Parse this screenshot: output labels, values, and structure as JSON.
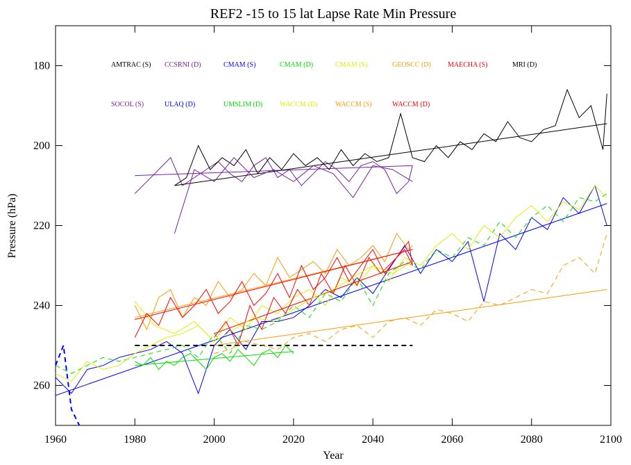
{
  "chart_data": {
    "type": "line",
    "title": "REF2 -15 to 15 lat Lapse Rate Min Pressure",
    "x_label": "Year",
    "y_label": "Pressure (hPa)",
    "xlim": [
      1960,
      2100
    ],
    "xticks": [
      1960,
      1980,
      2000,
      2020,
      2040,
      2060,
      2080,
      2100
    ],
    "ylim": [
      270,
      170
    ],
    "yticks": [
      180,
      200,
      220,
      240,
      260
    ],
    "series": [
      {
        "name": "AMTRAC (S)",
        "color": "#000000",
        "dash": true,
        "x": [
          1980,
          1990,
          2000,
          2010,
          2020,
          2030,
          2040,
          2050
        ],
        "values": [
          250,
          250,
          250,
          250,
          250,
          250,
          250,
          250
        ]
      },
      {
        "name": "CCSRNI (D)",
        "color": "#7a1fa2",
        "dash": false,
        "x": [
          1980,
          1983,
          1986,
          1989,
          1992,
          1995,
          1998,
          2001,
          2004,
          2007,
          2010,
          2013,
          2016,
          2019,
          2022,
          2025,
          2028,
          2031,
          2034,
          2037,
          2040,
          2043,
          2046,
          2049,
          2050
        ],
        "values": [
          212,
          209,
          206,
          203,
          210,
          208,
          206,
          204,
          207,
          209,
          205,
          203,
          208,
          206,
          210,
          207,
          204,
          206,
          209,
          205,
          204,
          206,
          212,
          209,
          205
        ],
        "trend": {
          "x": [
            1980,
            2050
          ],
          "values": [
            207.5,
            205
          ]
        }
      },
      {
        "name": "CMAM (S)",
        "color": "#0000ff",
        "dash": false,
        "x": [
          1960,
          1964,
          1968,
          1972,
          1976,
          1980,
          1984,
          1988,
          1992,
          1996,
          2000,
          2004,
          2008,
          2012,
          2016,
          2020,
          2024,
          2028,
          2032,
          2036,
          2040,
          2044,
          2048,
          2052,
          2056,
          2060,
          2064,
          2068,
          2072,
          2076,
          2080,
          2084,
          2088,
          2092,
          2096,
          2099
        ],
        "values": [
          258,
          262,
          256,
          255,
          253,
          252,
          251,
          249,
          252,
          262,
          250,
          246,
          251,
          244,
          244,
          243,
          240,
          236,
          238,
          233,
          237,
          231,
          225,
          232,
          226,
          229,
          224,
          239,
          222,
          226,
          218,
          221,
          213,
          217,
          210,
          220
        ],
        "trend": {
          "x": [
            1960,
            2099
          ],
          "values": [
            262.5,
            214.5
          ]
        }
      },
      {
        "name": "CMAM (D)",
        "color": "#00e000",
        "dash": true,
        "x": [
          1960,
          1964,
          1968,
          1972,
          1976,
          1980,
          1984,
          1988,
          1992,
          1996,
          2000,
          2004,
          2008,
          2012,
          2016,
          2020,
          2024,
          2028,
          2032,
          2036,
          2040,
          2044,
          2048,
          2052,
          2056,
          2060,
          2064,
          2068,
          2072,
          2076,
          2080,
          2084,
          2088,
          2092,
          2096,
          2099
        ],
        "values": [
          255,
          257,
          255,
          253,
          254,
          253,
          252,
          251,
          250,
          253,
          247,
          252,
          245,
          246,
          244,
          240,
          243,
          237,
          239,
          233,
          240,
          232,
          229,
          231,
          226,
          228,
          223,
          225,
          219,
          223,
          218,
          215,
          219,
          213,
          214,
          212
        ]
      },
      {
        "name": "CMAM (S)",
        "color": "#dcf000",
        "dash": false,
        "x": [
          1960,
          1964,
          1968,
          1972,
          1976,
          1980,
          1984,
          1988,
          1992,
          1996,
          2000,
          2004,
          2008,
          2012,
          2016,
          2020,
          2024,
          2028,
          2032,
          2036,
          2040,
          2044,
          2048,
          2052,
          2056,
          2060,
          2064,
          2068,
          2072,
          2076,
          2080,
          2084,
          2088,
          2092,
          2096,
          2099
        ],
        "values": [
          257,
          259,
          254,
          256,
          255,
          252,
          250,
          248,
          247,
          245,
          249,
          243,
          246,
          240,
          242,
          238,
          236,
          240,
          233,
          235,
          230,
          234,
          228,
          230,
          225,
          222,
          226,
          220,
          223,
          218,
          215,
          219,
          214,
          216,
          210,
          213
        ]
      },
      {
        "name": "GEOSCC (D)",
        "color": "#ff9900",
        "dash": false,
        "x": [
          1980,
          1983,
          1986,
          1989,
          1992,
          1995,
          1998,
          2001,
          2004,
          2007,
          2010,
          2013,
          2016,
          2019,
          2022,
          2025,
          2028,
          2031,
          2034,
          2037,
          2040,
          2043,
          2046,
          2049,
          2050
        ],
        "values": [
          240,
          246,
          238,
          236,
          243,
          238,
          240,
          234,
          238,
          236,
          232,
          235,
          228,
          233,
          231,
          229,
          232,
          226,
          230,
          228,
          225,
          229,
          222,
          226,
          225
        ],
        "trend": {
          "x": [
            1980,
            2050
          ],
          "values": [
            243,
            226
          ]
        }
      },
      {
        "name": "MAECHA (S)",
        "color": "#ff0000",
        "dash": false,
        "x": [
          2000,
          2003,
          2006,
          2009,
          2012,
          2015,
          2018,
          2021,
          2024,
          2027,
          2030,
          2033,
          2036,
          2039,
          2042,
          2045,
          2048,
          2050
        ],
        "values": [
          248,
          244,
          250,
          240,
          246,
          238,
          242,
          236,
          240,
          232,
          237,
          230,
          235,
          228,
          232,
          229,
          226,
          230
        ],
        "trend": {
          "x": [
            2000,
            2050
          ],
          "values": [
            247,
            229
          ]
        }
      },
      {
        "name": "MRI (D)",
        "color": "#000000",
        "dash": false,
        "x": [
          1990,
          1993,
          1996,
          1999,
          2002,
          2005,
          2008,
          2011,
          2014,
          2017,
          2020,
          2023,
          2026,
          2029,
          2032,
          2035,
          2038,
          2041,
          2044,
          2047,
          2050,
          2053,
          2056,
          2059,
          2062,
          2065,
          2068,
          2071,
          2074,
          2077,
          2080,
          2083,
          2086,
          2089,
          2092,
          2095,
          2098,
          2099
        ],
        "values": [
          210,
          208,
          200,
          206,
          203,
          205,
          201,
          207,
          203,
          206,
          202,
          205,
          203,
          206,
          201,
          205,
          202,
          204,
          203,
          192,
          203,
          204,
          200,
          203,
          199,
          201,
          197,
          199,
          194,
          198,
          199,
          196,
          195,
          186,
          193,
          190,
          201,
          187
        ],
        "trend": {
          "x": [
            1990,
            2099
          ],
          "values": [
            210,
            194.5
          ]
        }
      },
      {
        "name": "SOCOL (S)",
        "color": "#7a1fa2",
        "dash": false,
        "x": [
          1990,
          1995,
          2000,
          2005,
          2010,
          2015,
          2020,
          2025,
          2030,
          2035,
          2040,
          2045,
          2050
        ],
        "values": [
          222,
          206,
          209,
          203,
          208,
          206,
          209,
          205,
          207,
          213,
          205,
          206,
          209
        ]
      },
      {
        "name": "ULAQ (D)",
        "color": "#0000ff",
        "dash": true,
        "x": [
          1960,
          1962,
          1964,
          1966
        ],
        "values": [
          255,
          250,
          266,
          270
        ]
      },
      {
        "name": "UMSLIM (D)",
        "color": "#00e000",
        "dash": false,
        "x": [
          1980,
          1982,
          1984,
          1986,
          1988,
          1990,
          1992,
          1994,
          1996,
          1998,
          2000,
          2002,
          2004,
          2006,
          2008,
          2010,
          2012,
          2014,
          2016,
          2018,
          2020
        ],
        "values": [
          254,
          255,
          253,
          256,
          254,
          255,
          253,
          252,
          254,
          256,
          253,
          252,
          254,
          251,
          253,
          255,
          252,
          251,
          253,
          250,
          252
        ],
        "trend": {
          "x": [
            1980,
            2020
          ],
          "values": [
            255,
            251.5
          ]
        }
      },
      {
        "name": "WACCM (D)",
        "color": "#dcf000",
        "dash": false,
        "x": [
          1980,
          1985,
          1990,
          1995,
          2000,
          2005,
          2010,
          2015,
          2020,
          2025,
          2030,
          2035,
          2040,
          2045,
          2050
        ],
        "values": [
          239,
          245,
          247,
          244,
          249,
          246,
          243,
          244,
          241,
          238,
          236,
          233,
          230,
          232,
          229
        ]
      },
      {
        "name": "WACCM (S)",
        "color": "#ff9900",
        "dash": true,
        "x": [
          2000,
          2004,
          2008,
          2012,
          2016,
          2020,
          2024,
          2028,
          2032,
          2036,
          2040,
          2044,
          2048,
          2052,
          2056,
          2060,
          2064,
          2068,
          2072,
          2076,
          2080,
          2084,
          2088,
          2092,
          2096,
          2099
        ],
        "values": [
          252,
          251,
          249,
          250,
          251,
          248,
          247,
          249,
          246,
          245,
          248,
          244,
          243,
          245,
          241,
          242,
          244,
          239,
          240,
          238,
          236,
          237,
          230,
          228,
          232,
          222
        ],
        "trend": {
          "x": [
            2000,
            2099
          ],
          "values": [
            250,
            236
          ]
        }
      },
      {
        "name": "WACCM (D)",
        "color": "#ff0000",
        "dash": false,
        "x": [
          1980,
          1983,
          1986,
          1989,
          1992,
          1995,
          1998,
          2001,
          2004,
          2007,
          2010,
          2013,
          2016,
          2019,
          2022,
          2025,
          2028,
          2031,
          2034,
          2037,
          2040,
          2043,
          2046,
          2049,
          2050
        ],
        "values": [
          248,
          242,
          245,
          238,
          243,
          240,
          236,
          242,
          239,
          234,
          240,
          237,
          232,
          238,
          230,
          236,
          233,
          228,
          234,
          230,
          226,
          232,
          228,
          224,
          230
        ],
        "trend": {
          "x": [
            1980,
            2050
          ],
          "values": [
            243.5,
            226
          ]
        }
      }
    ]
  }
}
